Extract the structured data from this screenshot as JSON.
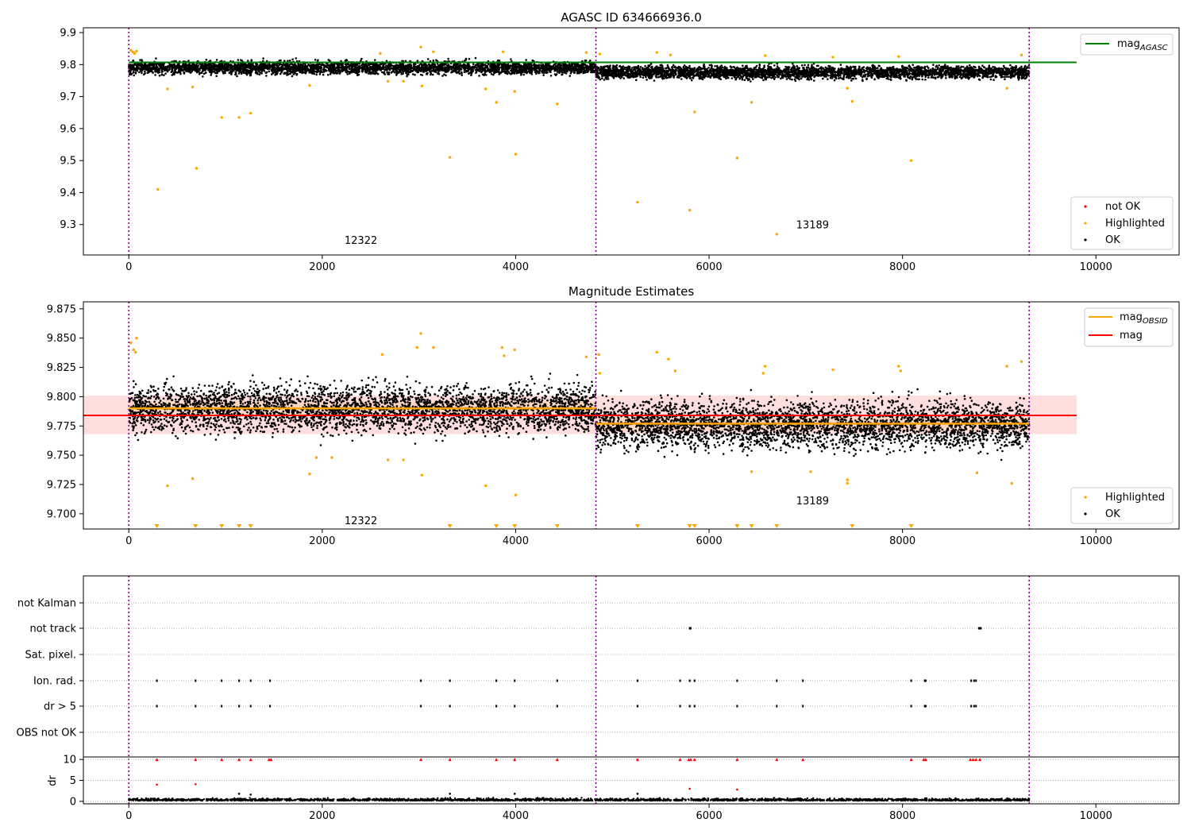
{
  "chart_data": [
    {
      "type": "scatter",
      "title": "AGASC ID 634666936.0",
      "xlim": [
        -470,
        10860
      ],
      "ylim": [
        9.205,
        9.915
      ],
      "xticks": [
        "0",
        "2000",
        "4000",
        "6000",
        "8000",
        "10000"
      ],
      "xtick_values": [
        0,
        2000,
        4000,
        6000,
        8000,
        10000
      ],
      "yticks": [
        "9.3",
        "9.4",
        "9.5",
        "9.6",
        "9.7",
        "9.8",
        "9.9"
      ],
      "ytick_values": [
        9.3,
        9.4,
        9.5,
        9.6,
        9.7,
        9.8,
        9.9
      ],
      "obsid_boundaries": [
        0,
        4830,
        9310
      ],
      "obsid_labels": [
        {
          "text": "12322",
          "x": 2400,
          "y": 9.24
        },
        {
          "text": "13189",
          "x": 7070,
          "y": 9.288
        }
      ],
      "reference_line": {
        "name": "mag_AGASC",
        "y": 9.807,
        "x_range": [
          0,
          9800
        ],
        "color": "#008000"
      },
      "series": [
        {
          "name": "OK",
          "color": "#000000",
          "description": "dense band",
          "segments": [
            {
              "x0": 0,
              "x1": 4830,
              "center": 9.79,
              "spread": 0.018
            },
            {
              "x0": 4830,
              "x1": 9310,
              "center": 9.776,
              "spread": 0.018
            }
          ]
        },
        {
          "name": "Highlighted",
          "color": "#ffa500",
          "points": [
            [
              20,
              9.845
            ],
            [
              40,
              9.84
            ],
            [
              60,
              9.835
            ],
            [
              80,
              9.842
            ],
            [
              300,
              9.41
            ],
            [
              400,
              9.724
            ],
            [
              660,
              9.73
            ],
            [
              700,
              9.476
            ],
            [
              960,
              9.635
            ],
            [
              1140,
              9.635
            ],
            [
              1260,
              9.648
            ],
            [
              1870,
              9.735
            ],
            [
              2680,
              9.748
            ],
            [
              2840,
              9.748
            ],
            [
              3030,
              9.733
            ],
            [
              3320,
              9.51
            ],
            [
              3690,
              9.724
            ],
            [
              3800,
              9.682
            ],
            [
              3870,
              9.84
            ],
            [
              3990,
              9.716
            ],
            [
              4000,
              9.52
            ],
            [
              4430,
              9.677
            ],
            [
              5260,
              9.37
            ],
            [
              5800,
              9.345
            ],
            [
              5850,
              9.652
            ],
            [
              6290,
              9.508
            ],
            [
              6440,
              9.682
            ],
            [
              6700,
              9.27
            ],
            [
              7430,
              9.726
            ],
            [
              7480,
              9.685
            ],
            [
              8090,
              9.5
            ],
            [
              9080,
              9.726
            ],
            [
              9230,
              9.83
            ],
            [
              3020,
              9.855
            ],
            [
              3150,
              9.84
            ],
            [
              2600,
              9.835
            ],
            [
              5460,
              9.838
            ],
            [
              5600,
              9.83
            ],
            [
              6580,
              9.828
            ],
            [
              7280,
              9.823
            ],
            [
              7960,
              9.825
            ],
            [
              4730,
              9.838
            ],
            [
              4870,
              9.833
            ]
          ]
        },
        {
          "name": "not OK",
          "color": "#ff0000",
          "points": []
        }
      ],
      "legend_top": [
        "mag_AGASC"
      ],
      "legend_bottom": [
        "not OK",
        "Highlighted",
        "OK"
      ],
      "legend_top_placement": "top-right",
      "legend_bottom_placement": "bottom-right"
    },
    {
      "type": "scatter",
      "title": "Magnitude Estimates",
      "xlim": [
        -470,
        10860
      ],
      "ylim": [
        9.687,
        9.881
      ],
      "xticks": [
        "0",
        "2000",
        "4000",
        "6000",
        "8000",
        "10000"
      ],
      "xtick_values": [
        0,
        2000,
        4000,
        6000,
        8000,
        10000
      ],
      "yticks": [
        "9.700",
        "9.725",
        "9.750",
        "9.775",
        "9.800",
        "9.825",
        "9.850",
        "9.875"
      ],
      "ytick_values": [
        9.7,
        9.725,
        9.75,
        9.775,
        9.8,
        9.825,
        9.85,
        9.875
      ],
      "obsid_boundaries": [
        0,
        4830,
        9310
      ],
      "obsid_labels": [
        {
          "text": "12322",
          "x": 2400,
          "y": 9.691
        },
        {
          "text": "13189",
          "x": 7070,
          "y": 9.708
        }
      ],
      "mag_line": {
        "name": "mag",
        "y": 9.784,
        "x_range": [
          -470,
          9800
        ],
        "band": [
          9.768,
          9.801
        ],
        "color": "#ff0000"
      },
      "obsid_mag_segments": [
        {
          "x0": 0,
          "x1": 4830,
          "y": 9.79
        },
        {
          "x0": 4830,
          "x1": 9310,
          "y": 9.777
        }
      ],
      "series": [
        {
          "name": "OK",
          "color": "#000000",
          "segments": [
            {
              "x0": 0,
              "x1": 4830,
              "center": 9.79,
              "spread": 0.018
            },
            {
              "x0": 4830,
              "x1": 9310,
              "center": 9.776,
              "spread": 0.018
            }
          ]
        },
        {
          "name": "Highlighted",
          "color": "#ffa500",
          "points": [
            [
              20,
              9.846
            ],
            [
              50,
              9.84
            ],
            [
              70,
              9.838
            ],
            [
              80,
              9.85
            ],
            [
              400,
              9.724
            ],
            [
              660,
              9.73
            ],
            [
              1870,
              9.734
            ],
            [
              1940,
              9.748
            ],
            [
              2100,
              9.748
            ],
            [
              2620,
              9.836
            ],
            [
              2680,
              9.746
            ],
            [
              2840,
              9.746
            ],
            [
              2980,
              9.842
            ],
            [
              3020,
              9.854
            ],
            [
              3030,
              9.733
            ],
            [
              3150,
              9.842
            ],
            [
              3690,
              9.724
            ],
            [
              3860,
              9.842
            ],
            [
              3880,
              9.835
            ],
            [
              3990,
              9.84
            ],
            [
              4000,
              9.716
            ],
            [
              4730,
              9.834
            ],
            [
              4860,
              9.836
            ],
            [
              4870,
              9.82
            ],
            [
              5460,
              9.838
            ],
            [
              5580,
              9.832
            ],
            [
              5650,
              9.822
            ],
            [
              6440,
              9.736
            ],
            [
              6580,
              9.826
            ],
            [
              6560,
              9.82
            ],
            [
              7050,
              9.736
            ],
            [
              7280,
              9.823
            ],
            [
              7430,
              9.726
            ],
            [
              7430,
              9.729
            ],
            [
              7960,
              9.826
            ],
            [
              7980,
              9.822
            ],
            [
              8770,
              9.735
            ],
            [
              9080,
              9.826
            ],
            [
              9130,
              9.726
            ],
            [
              9230,
              9.83
            ]
          ]
        },
        {
          "name": "below-range markers",
          "color": "#ffa500",
          "marker": "triangle-down",
          "x": [
            290,
            690,
            960,
            1140,
            1260,
            3320,
            3800,
            3990,
            4430,
            5260,
            5800,
            5850,
            6290,
            6440,
            6700,
            7480,
            8090
          ]
        }
      ],
      "legend_top": [
        "mag_OBSID",
        "mag"
      ],
      "legend_bottom": [
        "Highlighted",
        "OK"
      ],
      "legend_top_placement": "top-right",
      "legend_bottom_placement": "bottom-right"
    },
    {
      "type": "scatter",
      "title": "",
      "xlim": [
        -470,
        10860
      ],
      "categories": [
        "not Kalman",
        "not track",
        "Sat. pixel.",
        "Ion. rad.",
        "dr > 5",
        "OBS not OK"
      ],
      "obsid_boundaries": [
        0,
        4830,
        9310
      ],
      "flags": {
        "not track": [
          5800,
          5810,
          8790,
          8800,
          8810
        ],
        "Ion. rad.": [
          290,
          690,
          960,
          1140,
          1260,
          1460,
          3020,
          3320,
          3800,
          3990,
          4430,
          5260,
          5700,
          5800,
          5850,
          6290,
          6700,
          6970,
          8090,
          8230,
          8240,
          8710,
          8740,
          8760
        ],
        "dr > 5": [
          290,
          690,
          960,
          1140,
          1260,
          1460,
          3020,
          3320,
          3800,
          3990,
          4430,
          5260,
          5700,
          5800,
          5850,
          6290,
          6700,
          6970,
          8090,
          8230,
          8240,
          8710,
          8740,
          8760
        ]
      },
      "dr_axis": {
        "ylabel": "dr",
        "ylim": [
          -0.6,
          10.6
        ],
        "yticks": [
          "0",
          "5",
          "10"
        ],
        "ytick_values": [
          0,
          5,
          10
        ],
        "xticks": [
          "0",
          "2000",
          "4000",
          "6000",
          "8000",
          "10000"
        ],
        "xtick_values": [
          0,
          2000,
          4000,
          6000,
          8000,
          10000
        ],
        "clipped_at_10": [
          290,
          690,
          960,
          1140,
          1260,
          1450,
          1470,
          3020,
          3320,
          3800,
          3990,
          4430,
          5260,
          5700,
          5790,
          5810,
          5850,
          6290,
          6700,
          6970,
          8090,
          8220,
          8240,
          8700,
          8730,
          8760,
          8800
        ],
        "red_points": [
          [
            290,
            4.0
          ],
          [
            690,
            4.1
          ],
          [
            5800,
            3.0
          ],
          [
            6290,
            2.8
          ]
        ],
        "black_points": [
          [
            1140,
            1.8
          ],
          [
            1260,
            1.6
          ],
          [
            3320,
            1.8
          ],
          [
            3990,
            1.8
          ],
          [
            5260,
            1.8
          ]
        ]
      }
    }
  ]
}
